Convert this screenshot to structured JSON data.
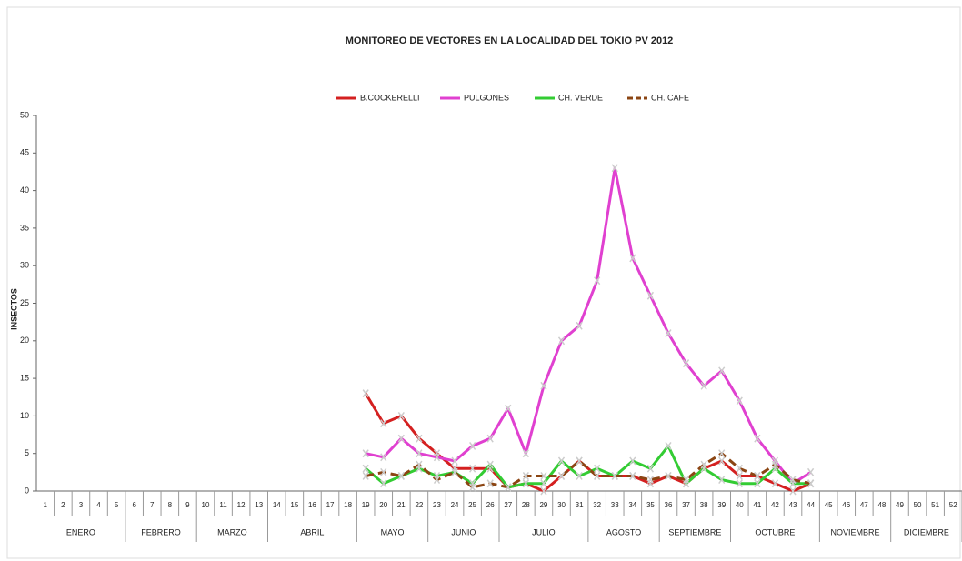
{
  "chart_data": {
    "type": "line",
    "title": "MONITOREO DE VECTORES  EN LA LOCALIDAD DEL TOKIO PV 2012",
    "y_label": "INSECTOS",
    "categories": [
      "1",
      "2",
      "3",
      "4",
      "5",
      "6",
      "7",
      "8",
      "9",
      "10",
      "11",
      "12",
      "13",
      "14",
      "15",
      "16",
      "17",
      "18",
      "19",
      "20",
      "21",
      "22",
      "23",
      "24",
      "25",
      "26",
      "27",
      "28",
      "29",
      "30",
      "31",
      "32",
      "33",
      "34",
      "35",
      "36",
      "37",
      "38",
      "39",
      "40",
      "41",
      "42",
      "43",
      "44",
      "45",
      "46",
      "47",
      "48",
      "49",
      "50",
      "51",
      "52"
    ],
    "month_groups": [
      {
        "label": "ENERO",
        "span": 5
      },
      {
        "label": "FEBRERO",
        "span": 4
      },
      {
        "label": "MARZO",
        "span": 4
      },
      {
        "label": "ABRIL",
        "span": 5
      },
      {
        "label": "MAYO",
        "span": 4
      },
      {
        "label": "JUNIO",
        "span": 4
      },
      {
        "label": "JULIO",
        "span": 5
      },
      {
        "label": "AGOSTO",
        "span": 4
      },
      {
        "label": "SEPTIEMBRE",
        "span": 4
      },
      {
        "label": "OCTUBRE",
        "span": 5
      },
      {
        "label": "NOVIEMBRE",
        "span": 4
      },
      {
        "label": "DICIEMBRE",
        "span": 4
      }
    ],
    "series": [
      {
        "name": "B.COCKERELLI",
        "color": "#d42020",
        "dashed": false,
        "values": [
          null,
          null,
          null,
          null,
          null,
          null,
          null,
          null,
          null,
          null,
          null,
          null,
          null,
          null,
          null,
          null,
          null,
          null,
          13,
          9,
          10,
          7,
          5,
          3,
          3,
          3,
          0.5,
          1,
          0,
          2,
          4,
          2,
          2,
          2,
          1,
          2,
          1,
          3,
          4,
          2,
          2,
          1,
          0,
          1,
          null,
          null,
          null,
          null,
          null,
          null,
          null,
          null
        ]
      },
      {
        "name": "PULGONES",
        "color": "#e040d0",
        "dashed": false,
        "values": [
          null,
          null,
          null,
          null,
          null,
          null,
          null,
          null,
          null,
          null,
          null,
          null,
          null,
          null,
          null,
          null,
          null,
          null,
          5,
          4.5,
          7,
          5,
          4.5,
          4,
          6,
          7,
          11,
          5,
          14,
          20,
          22,
          28,
          43,
          31,
          26,
          21,
          17,
          14,
          16,
          12,
          7,
          4,
          1,
          2.5,
          null,
          null,
          null,
          null,
          null,
          null,
          null,
          null
        ]
      },
      {
        "name": "CH. VERDE",
        "color": "#33cc33",
        "dashed": false,
        "values": [
          null,
          null,
          null,
          null,
          null,
          null,
          null,
          null,
          null,
          null,
          null,
          null,
          null,
          null,
          null,
          null,
          null,
          null,
          3,
          1,
          2,
          3,
          2,
          2.5,
          1,
          3.5,
          0.5,
          1,
          1,
          4,
          2,
          3,
          2,
          4,
          3,
          6,
          1,
          3,
          1.5,
          1,
          1,
          3,
          1,
          1,
          null,
          null,
          null,
          null,
          null,
          null,
          null,
          null
        ]
      },
      {
        "name": "CH. CAFE",
        "color": "#8b4513",
        "dashed": true,
        "values": [
          null,
          null,
          null,
          null,
          null,
          null,
          null,
          null,
          null,
          null,
          null,
          null,
          null,
          null,
          null,
          null,
          null,
          null,
          2,
          2.5,
          2,
          3.5,
          1.5,
          2.5,
          0.5,
          1,
          0.5,
          2,
          2,
          2,
          4,
          2,
          2,
          2,
          1.5,
          2,
          1.5,
          3.5,
          5,
          3,
          2,
          3.5,
          1.5,
          1,
          null,
          null,
          null,
          null,
          null,
          null,
          null,
          null
        ]
      }
    ],
    "ylim": [
      0,
      50
    ],
    "yticks": [
      0,
      5,
      10,
      15,
      20,
      25,
      30,
      35,
      40,
      45,
      50
    ],
    "grid": false
  }
}
